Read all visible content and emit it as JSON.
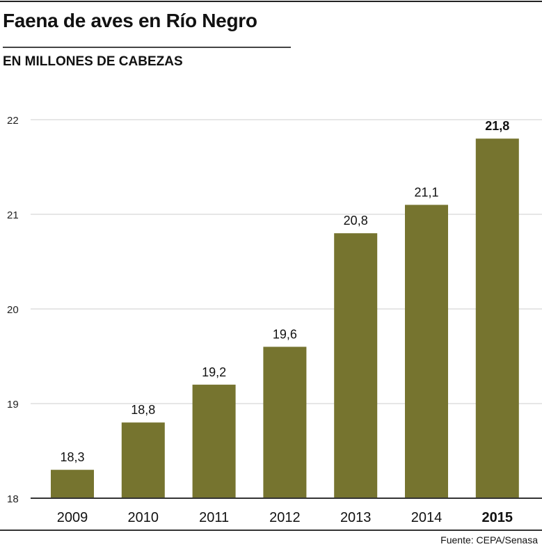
{
  "title": "Faena de aves en Río Negro",
  "subtitle": "EN MILLONES DE CABEZAS",
  "source": "Fuente: CEPA/Senasa",
  "colors": {
    "bar": "#76742f",
    "grid": "#cccccc",
    "axis": "#333333"
  },
  "chart_data": {
    "type": "bar",
    "title": "Faena de aves en Río Negro",
    "ylabel": "EN MILLONES DE CABEZAS",
    "categories": [
      "2009",
      "2010",
      "2011",
      "2012",
      "2013",
      "2014",
      "2015"
    ],
    "values": [
      18.3,
      18.8,
      19.2,
      19.6,
      20.8,
      21.1,
      21.8
    ],
    "value_labels": [
      "18,3",
      "18,8",
      "19,2",
      "19,6",
      "20,8",
      "21,1",
      "21,8"
    ],
    "ylim": [
      18,
      22
    ],
    "yticks": [
      18,
      19,
      20,
      21,
      22
    ],
    "ytick_labels": [
      "18",
      "19",
      "20",
      "21",
      "22"
    ],
    "grid": true,
    "highlight_index": 6
  }
}
